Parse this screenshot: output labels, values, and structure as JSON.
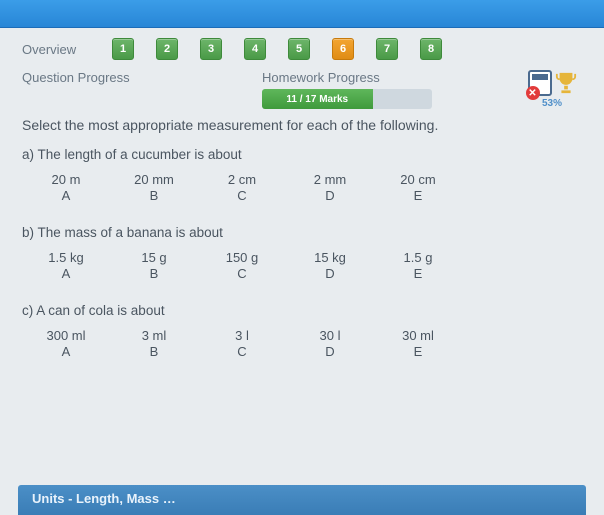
{
  "nav": {
    "overview_label": "Overview",
    "tiles": [
      "1",
      "2",
      "3",
      "4",
      "5",
      "6",
      "7",
      "8"
    ],
    "active_index": 5
  },
  "progress": {
    "question_label": "Question Progress",
    "hw_label": "Homework Progress",
    "marks_text": "11 / 17 Marks",
    "fill_pct": 65,
    "score_label": "53%"
  },
  "instruction": "Select the most appropriate measurement for each of the following.",
  "questions": [
    {
      "prompt": "a) The length of a cucumber is about",
      "choices": [
        {
          "value": "20 m",
          "letter": "A"
        },
        {
          "value": "20 mm",
          "letter": "B"
        },
        {
          "value": "2 cm",
          "letter": "C"
        },
        {
          "value": "2 mm",
          "letter": "D"
        },
        {
          "value": "20 cm",
          "letter": "E"
        }
      ]
    },
    {
      "prompt": "b) The mass of a banana is about",
      "choices": [
        {
          "value": "1.5 kg",
          "letter": "A"
        },
        {
          "value": "15 g",
          "letter": "B"
        },
        {
          "value": "150 g",
          "letter": "C"
        },
        {
          "value": "15 kg",
          "letter": "D"
        },
        {
          "value": "1.5 g",
          "letter": "E"
        }
      ]
    },
    {
      "prompt": "c) A can of cola is about",
      "choices": [
        {
          "value": "300 ml",
          "letter": "A"
        },
        {
          "value": "3 ml",
          "letter": "B"
        },
        {
          "value": "3 l",
          "letter": "C"
        },
        {
          "value": "30 l",
          "letter": "D"
        },
        {
          "value": "30 ml",
          "letter": "E"
        }
      ]
    }
  ],
  "footer": "Units - Length, Mass …",
  "colors": {
    "tile_green": "#4a9a47",
    "tile_orange": "#e08c15",
    "bar_green": "#3f9a3c",
    "topbar": "#2886d6",
    "footer": "#3a7db6"
  }
}
